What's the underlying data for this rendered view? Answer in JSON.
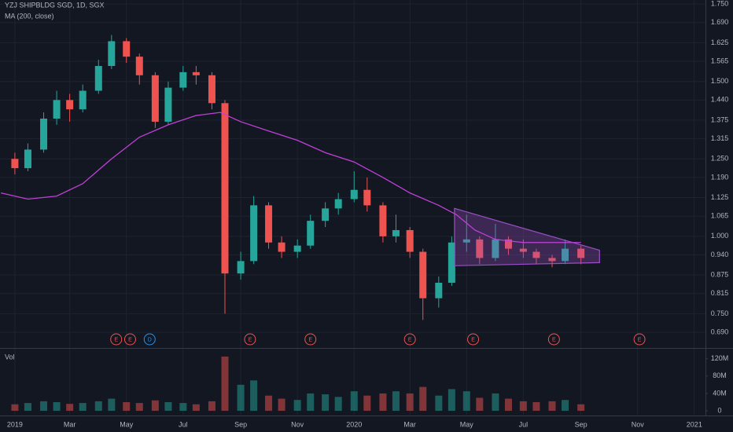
{
  "chart_data": {
    "type": "candlestick",
    "title": "YZJ SHIPBLDG SGD, 1D, SGX",
    "volume_label": "Vol",
    "up_color": "#26a69a",
    "down_color": "#ef5350",
    "xlim": [
      "2018-12-16",
      "2021-01-13"
    ],
    "xticks": [
      {
        "value": "2019-01-01",
        "label": "2019"
      },
      {
        "value": "2019-03-01",
        "label": "Mar"
      },
      {
        "value": "2019-05-01",
        "label": "May"
      },
      {
        "value": "2019-07-01",
        "label": "Jul"
      },
      {
        "value": "2019-09-01",
        "label": "Sep"
      },
      {
        "value": "2019-11-01",
        "label": "Nov"
      },
      {
        "value": "2020-01-01",
        "label": "2020"
      },
      {
        "value": "2020-03-01",
        "label": "Mar"
      },
      {
        "value": "2020-05-01",
        "label": "May"
      },
      {
        "value": "2020-07-01",
        "label": "Jul"
      },
      {
        "value": "2020-09-01",
        "label": "Sep"
      },
      {
        "value": "2020-11-01",
        "label": "Nov"
      },
      {
        "value": "2021-01-01",
        "label": "2021"
      }
    ],
    "ylim": [
      0.642,
      1.763
    ],
    "yticks": [
      {
        "value": 1.75,
        "label": "1.750"
      },
      {
        "value": 1.69,
        "label": "1.690"
      },
      {
        "value": 1.625,
        "label": "1.625"
      },
      {
        "value": 1.565,
        "label": "1.565"
      },
      {
        "value": 1.5,
        "label": "1.500"
      },
      {
        "value": 1.44,
        "label": "1.440"
      },
      {
        "value": 1.375,
        "label": "1.375"
      },
      {
        "value": 1.315,
        "label": "1.315"
      },
      {
        "value": 1.25,
        "label": "1.250"
      },
      {
        "value": 1.19,
        "label": "1.190"
      },
      {
        "value": 1.125,
        "label": "1.125"
      },
      {
        "value": 1.065,
        "label": "1.065"
      },
      {
        "value": 1.0,
        "label": "1.000"
      },
      {
        "value": 0.94,
        "label": "0.940"
      },
      {
        "value": 0.875,
        "label": "0.875"
      },
      {
        "value": 0.815,
        "label": "0.815"
      },
      {
        "value": 0.75,
        "label": "0.750"
      },
      {
        "value": 0.69,
        "label": "0.690"
      }
    ],
    "vlim": [
      -9000000,
      143000000
    ],
    "vticks": [
      {
        "value": 120000000,
        "label": "120M"
      },
      {
        "value": 80000000,
        "label": "80M"
      },
      {
        "value": 40000000,
        "label": "40M"
      },
      0
    ],
    "grid": true,
    "x": [
      "2019-01-01",
      "2019-01-15",
      "2019-02-01",
      "2019-02-15",
      "2019-03-01",
      "2019-03-15",
      "2019-04-01",
      "2019-04-15",
      "2019-05-01",
      "2019-05-15",
      "2019-06-01",
      "2019-06-15",
      "2019-07-01",
      "2019-07-15",
      "2019-08-01",
      "2019-08-15",
      "2019-09-01",
      "2019-09-15",
      "2019-10-01",
      "2019-10-15",
      "2019-11-01",
      "2019-11-15",
      "2019-12-01",
      "2019-12-15",
      "2020-01-01",
      "2020-01-15",
      "2020-02-01",
      "2020-02-15",
      "2020-03-01",
      "2020-03-15",
      "2020-04-01",
      "2020-04-15",
      "2020-05-01",
      "2020-05-15",
      "2020-06-01",
      "2020-06-15",
      "2020-07-01",
      "2020-07-15",
      "2020-08-01",
      "2020-08-15",
      "2020-09-01"
    ],
    "open": [
      1.25,
      1.22,
      1.28,
      1.38,
      1.44,
      1.41,
      1.47,
      1.55,
      1.63,
      1.58,
      1.52,
      1.37,
      1.48,
      1.53,
      1.52,
      1.43,
      0.88,
      0.92,
      1.1,
      0.98,
      0.95,
      0.97,
      1.05,
      1.09,
      1.12,
      1.15,
      1.1,
      1.0,
      1.02,
      0.95,
      0.8,
      0.85,
      0.98,
      0.99,
      0.93,
      0.99,
      0.96,
      0.95,
      0.93,
      0.92,
      0.96
    ],
    "high": [
      1.27,
      1.3,
      1.4,
      1.47,
      1.46,
      1.49,
      1.57,
      1.65,
      1.64,
      1.59,
      1.53,
      1.5,
      1.55,
      1.55,
      1.53,
      1.44,
      0.95,
      1.13,
      1.11,
      1.0,
      0.99,
      1.07,
      1.11,
      1.14,
      1.21,
      1.19,
      1.11,
      1.07,
      1.03,
      0.96,
      0.87,
      1.0,
      1.07,
      1.0,
      1.04,
      1.0,
      0.99,
      0.96,
      0.94,
      0.99,
      0.97
    ],
    "low": [
      1.2,
      1.21,
      1.27,
      1.36,
      1.37,
      1.4,
      1.46,
      1.54,
      1.56,
      1.49,
      1.35,
      1.36,
      1.47,
      1.49,
      1.41,
      0.75,
      0.86,
      0.91,
      0.96,
      0.93,
      0.93,
      0.96,
      1.03,
      1.07,
      1.11,
      1.08,
      0.98,
      0.98,
      0.93,
      0.73,
      0.77,
      0.84,
      0.95,
      0.91,
      0.92,
      0.94,
      0.93,
      0.91,
      0.9,
      0.91,
      0.91
    ],
    "close": [
      1.22,
      1.28,
      1.38,
      1.44,
      1.41,
      1.47,
      1.55,
      1.63,
      1.58,
      1.52,
      1.37,
      1.48,
      1.53,
      1.52,
      1.43,
      0.88,
      0.92,
      1.1,
      0.98,
      0.95,
      0.97,
      1.05,
      1.09,
      1.12,
      1.15,
      1.1,
      1.0,
      1.02,
      0.95,
      0.8,
      0.85,
      0.98,
      0.99,
      0.93,
      0.99,
      0.96,
      0.95,
      0.93,
      0.92,
      0.96,
      0.93
    ],
    "volume": [
      15000000,
      18000000,
      22000000,
      20000000,
      16000000,
      18000000,
      22000000,
      28000000,
      20000000,
      18000000,
      24000000,
      20000000,
      18000000,
      15000000,
      22000000,
      125000000,
      60000000,
      70000000,
      35000000,
      28000000,
      25000000,
      40000000,
      38000000,
      32000000,
      45000000,
      35000000,
      40000000,
      45000000,
      40000000,
      55000000,
      35000000,
      50000000,
      45000000,
      30000000,
      40000000,
      28000000,
      22000000,
      20000000,
      22000000,
      25000000,
      15000000
    ],
    "ma": {
      "name": "MA (200, close)",
      "color": "#c040d8",
      "x": [
        "2018-12-17",
        "2019-01-15",
        "2019-02-15",
        "2019-03-15",
        "2019-04-15",
        "2019-05-15",
        "2019-06-15",
        "2019-07-15",
        "2019-08-10",
        "2019-09-01",
        "2019-10-01",
        "2019-11-01",
        "2019-12-01",
        "2020-01-01",
        "2020-02-01",
        "2020-03-01",
        "2020-04-01",
        "2020-04-20",
        "2020-05-10",
        "2020-06-01",
        "2020-07-01",
        "2020-08-01",
        "2020-09-01"
      ],
      "values": [
        1.14,
        1.12,
        1.13,
        1.17,
        1.25,
        1.32,
        1.36,
        1.39,
        1.4,
        1.37,
        1.34,
        1.31,
        1.27,
        1.24,
        1.19,
        1.14,
        1.1,
        1.07,
        1.02,
        0.99,
        0.98,
        0.98,
        0.98
      ]
    },
    "pattern": {
      "color": "#9c4fc6",
      "x": [
        "2020-04-18",
        "2020-09-21",
        "2020-09-21",
        "2020-04-18"
      ],
      "y": [
        1.09,
        0.955,
        0.915,
        0.905
      ]
    },
    "events": [
      {
        "x": "2019-04-20",
        "label": "E",
        "color": "#ef5350"
      },
      {
        "x": "2019-05-05",
        "label": "E",
        "color": "#ef5350"
      },
      {
        "x": "2019-05-26",
        "label": "D",
        "color": "#2196f3"
      },
      {
        "x": "2019-09-11",
        "label": "E",
        "color": "#ef5350"
      },
      {
        "x": "2019-11-15",
        "label": "E",
        "color": "#ef5350"
      },
      {
        "x": "2020-03-01",
        "label": "E",
        "color": "#ef5350"
      },
      {
        "x": "2020-05-08",
        "label": "E",
        "color": "#ef5350"
      },
      {
        "x": "2020-08-03",
        "label": "E",
        "color": "#ef5350"
      },
      {
        "x": "2020-11-03",
        "label": "E",
        "color": "#ef5350"
      }
    ]
  }
}
